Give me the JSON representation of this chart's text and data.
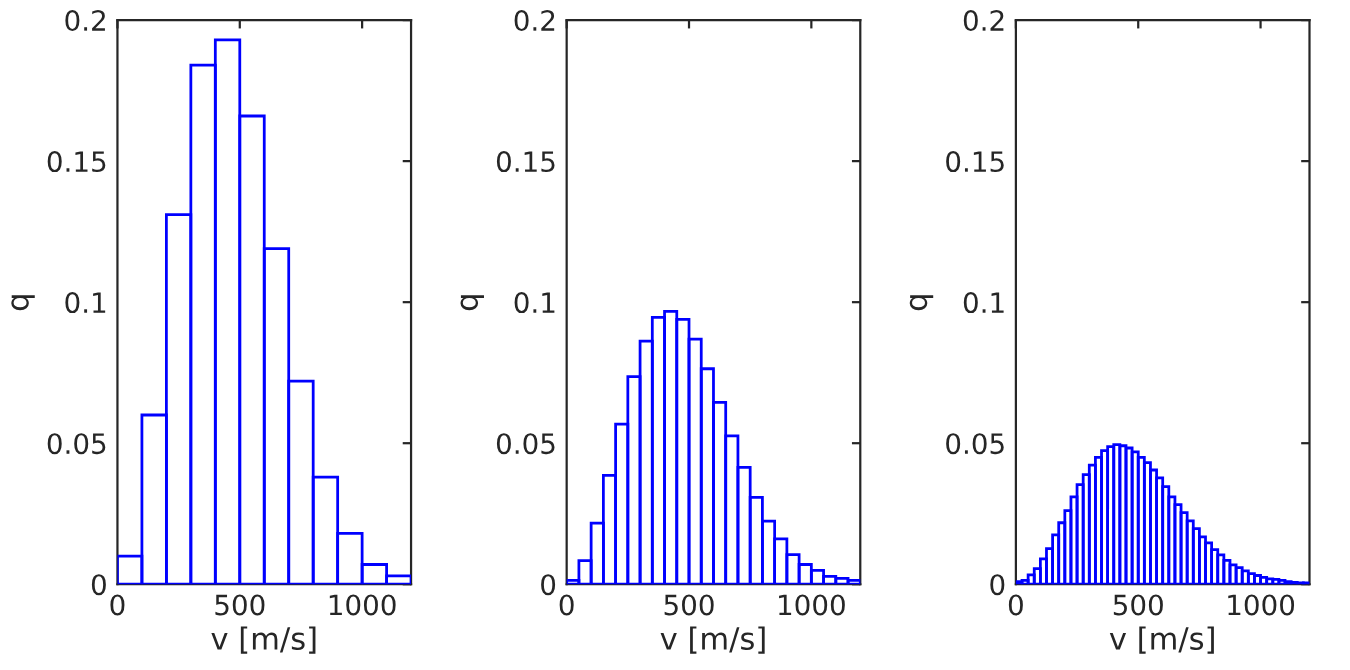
{
  "chart_data": [
    {
      "type": "histogram",
      "xlabel": "v [m/s]",
      "ylabel": "q",
      "color": "#0000ff",
      "xlim": [
        0,
        1200
      ],
      "ylim": [
        0,
        0.2
      ],
      "xticks": [
        0,
        500,
        1000
      ],
      "yticks": [
        0,
        0.05,
        0.1,
        0.15,
        0.2
      ],
      "grid": false,
      "bins": [
        0,
        100,
        200,
        300,
        400,
        500,
        600,
        700,
        800,
        900,
        1000,
        1100,
        1200
      ],
      "values": [
        0.01,
        0.06,
        0.131,
        0.184,
        0.193,
        0.166,
        0.119,
        0.072,
        0.038,
        0.018,
        0.007,
        0.003
      ]
    },
    {
      "type": "histogram",
      "xlabel": "v [m/s]",
      "ylabel": "q",
      "color": "#0000ff",
      "xlim": [
        0,
        1200
      ],
      "ylim": [
        0,
        0.2
      ],
      "xticks": [
        0,
        500,
        1000
      ],
      "yticks": [
        0,
        0.05,
        0.1,
        0.15,
        0.2
      ],
      "grid": false,
      "bins": [
        0,
        50,
        100,
        150,
        200,
        250,
        300,
        350,
        400,
        450,
        500,
        550,
        600,
        650,
        700,
        750,
        800,
        850,
        900,
        950,
        1000,
        1050,
        1100,
        1150,
        1200
      ],
      "values": [
        0.0014,
        0.0084,
        0.0217,
        0.0386,
        0.0568,
        0.0736,
        0.0862,
        0.0946,
        0.0967,
        0.0939,
        0.0869,
        0.0764,
        0.0645,
        0.0526,
        0.0414,
        0.0308,
        0.0224,
        0.0161,
        0.0105,
        0.007,
        0.0049,
        0.0028,
        0.0021,
        0.0014
      ]
    },
    {
      "type": "histogram",
      "xlabel": "v [m/s]",
      "ylabel": "q",
      "color": "#0000ff",
      "xlim": [
        0,
        1200
      ],
      "ylim": [
        0,
        0.2
      ],
      "xticks": [
        0,
        500,
        1000
      ],
      "yticks": [
        0,
        0.05,
        0.1,
        0.15,
        0.2
      ],
      "grid": false,
      "bins": [
        0,
        25,
        50,
        75,
        100,
        125,
        150,
        175,
        200,
        225,
        250,
        275,
        300,
        325,
        350,
        375,
        400,
        425,
        450,
        475,
        500,
        525,
        550,
        575,
        600,
        625,
        650,
        675,
        700,
        725,
        750,
        775,
        800,
        825,
        850,
        875,
        900,
        925,
        950,
        975,
        1000,
        1025,
        1050,
        1075,
        1100,
        1125,
        1150,
        1175,
        1200
      ],
      "values": [
        0.0009,
        0.0014,
        0.0033,
        0.0055,
        0.009,
        0.0126,
        0.0175,
        0.0218,
        0.0261,
        0.031,
        0.0353,
        0.0389,
        0.0422,
        0.045,
        0.0474,
        0.0488,
        0.0495,
        0.0491,
        0.0483,
        0.0469,
        0.045,
        0.0431,
        0.0405,
        0.0377,
        0.0346,
        0.031,
        0.0282,
        0.0254,
        0.0225,
        0.0197,
        0.0168,
        0.0147,
        0.0123,
        0.0104,
        0.0085,
        0.0069,
        0.0059,
        0.0047,
        0.0038,
        0.0031,
        0.0024,
        0.0019,
        0.0017,
        0.0014,
        0.0009,
        0.0007,
        0.0005,
        0.0005
      ]
    }
  ]
}
